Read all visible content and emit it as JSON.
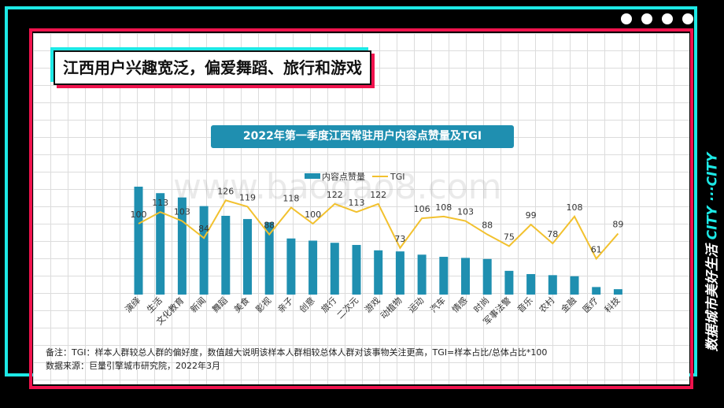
{
  "headline": "江西用户兴趣宽泛，偏爱舞蹈、旅行和游戏",
  "side_slogan": {
    "main": "数据城市美好生活",
    "sub": "CITY ···CITY"
  },
  "notes": {
    "remark": "备注：TGI：样本人群较总人群的偏好度，数值越大说明该样本人群相较总体人群对该事物关注更高，TGI=样本占比/总体占比*100",
    "source": "数据来源：巨量引擎城市研究院，2022年3月"
  },
  "watermark": "www.baogao8.com",
  "colors": {
    "bar": "#1f8fb0",
    "line": "#f2c12e",
    "accent_red": "#f0134d",
    "accent_cyan": "#1de9e6"
  },
  "chart_data": {
    "type": "bar",
    "title": "2022年第一季度江西常驻用户内容点赞量及TGI",
    "categories": [
      "演绎",
      "生活",
      "文化教育",
      "新闻",
      "舞蹈",
      "美食",
      "影视",
      "亲子",
      "创意",
      "旅行",
      "二次元",
      "游戏",
      "动植物",
      "运动",
      "汽车",
      "情感",
      "时尚",
      "军事法警",
      "音乐",
      "农村",
      "金融",
      "医疗",
      "科技"
    ],
    "series": [
      {
        "name": "内容点赞量",
        "type": "bar",
        "values": [
          100,
          94,
          90,
          82,
          73,
          70,
          67,
          52,
          50,
          48,
          46,
          41,
          40,
          37,
          35,
          34,
          33,
          22,
          19,
          18,
          17,
          7,
          5
        ]
      },
      {
        "name": "TGI",
        "type": "line",
        "values": [
          100,
          113,
          103,
          84,
          126,
          119,
          88,
          118,
          100,
          122,
          113,
          122,
          73,
          106,
          108,
          103,
          88,
          75,
          99,
          78,
          108,
          61,
          89
        ]
      }
    ],
    "legend": "top-center",
    "grid": false
  }
}
